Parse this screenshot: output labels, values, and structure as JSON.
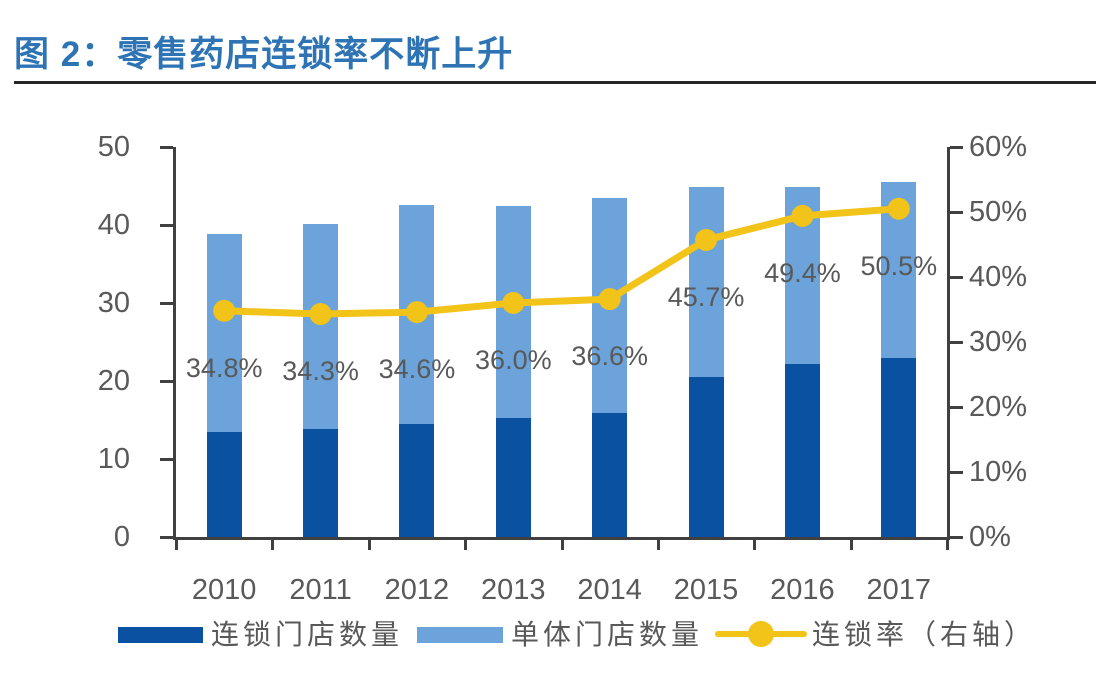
{
  "title": "图 2：零售药店连锁率不断上升",
  "colors": {
    "title_blue": "#2E74B5",
    "rule_dark": "#262626",
    "axis_gray": "#404040",
    "label_gray": "#595959",
    "chain_bar_blue": "#0A51A1",
    "single_bar_blue": "#6BA3DA",
    "rate_line_yellow": "#F2C319"
  },
  "chart_data": {
    "type": "bar",
    "subtype": "stacked-bars-with-secondary-axis-line",
    "title": "零售药店连锁率不断上升",
    "categories": [
      "2010",
      "2011",
      "2012",
      "2013",
      "2014",
      "2015",
      "2016",
      "2017"
    ],
    "series": [
      {
        "name": "连锁门店数量",
        "type": "bar",
        "stack": "stores",
        "axis": "left",
        "color": "#0A51A1",
        "values": [
          13.5,
          13.8,
          14.5,
          15.2,
          15.9,
          20.5,
          22.2,
          22.9
        ]
      },
      {
        "name": "单体门店数量",
        "type": "bar",
        "stack": "stores",
        "axis": "left",
        "color": "#6BA3DA",
        "values": [
          25.4,
          26.3,
          28.1,
          27.3,
          27.6,
          24.4,
          22.7,
          22.6
        ]
      },
      {
        "name": "连锁率（右轴）",
        "type": "line",
        "axis": "right",
        "color": "#F2C319",
        "values": [
          34.8,
          34.3,
          34.6,
          36.0,
          36.6,
          45.7,
          49.4,
          50.5
        ],
        "point_labels": [
          "34.8%",
          "34.3%",
          "34.6%",
          "36.0%",
          "36.6%",
          "45.7%",
          "49.4%",
          "50.5%"
        ]
      }
    ],
    "left_axis": {
      "min": 0,
      "max": 50,
      "tick_labels": [
        "0",
        "10",
        "20",
        "30",
        "40",
        "50"
      ]
    },
    "right_axis": {
      "min": 0,
      "max": 60,
      "tick_labels": [
        "0%",
        "10%",
        "20%",
        "30%",
        "40%",
        "50%",
        "60%"
      ]
    },
    "grid": false,
    "legend_position": "bottom",
    "legend_entries": [
      "连锁门店数量",
      "单体门店数量",
      "连锁率（右轴）"
    ]
  }
}
